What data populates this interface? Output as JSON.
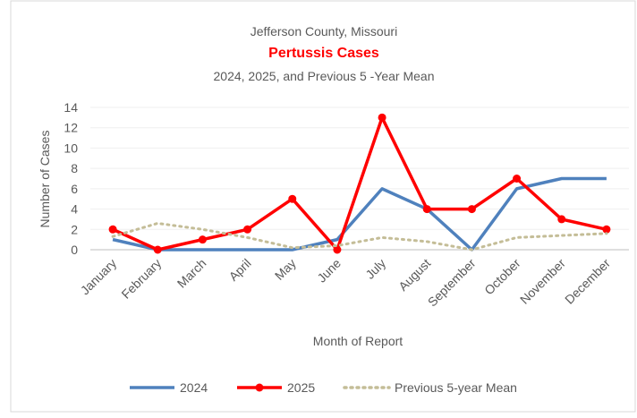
{
  "chart_data": {
    "type": "line",
    "title": "Jefferson County, Missouri",
    "subtitle": "Pertussis Cases",
    "subtitle2": "2024, 2025, and Previous 5 -Year Mean",
    "ylabel": "Number of Cases",
    "xlabel": "Month of Report",
    "categories": [
      "January",
      "February",
      "March",
      "April",
      "May",
      "June",
      "July",
      "August",
      "September",
      "October",
      "November",
      "December"
    ],
    "series": [
      {
        "name": "2024",
        "color": "#4f81bd",
        "style": "solid",
        "marker": false,
        "values": [
          1,
          0,
          0,
          0,
          0,
          1,
          6,
          4,
          0,
          6,
          7,
          7
        ]
      },
      {
        "name": "2025",
        "color": "#ff0000",
        "style": "solid",
        "marker": true,
        "values": [
          2,
          0,
          1,
          2,
          5,
          0,
          13,
          4,
          4,
          7,
          3,
          2
        ]
      },
      {
        "name": "Previous 5-year Mean",
        "color": "#c4bd97",
        "style": "dotted",
        "marker": false,
        "values": [
          1.3,
          2.6,
          2.0,
          1.2,
          0.2,
          0.4,
          1.2,
          0.8,
          0.0,
          1.2,
          1.4,
          1.6
        ]
      }
    ],
    "ylim": [
      0,
      14
    ],
    "yticks": [
      0,
      2,
      4,
      6,
      8,
      10,
      12,
      14
    ],
    "grid": true,
    "legend": "bottom"
  }
}
